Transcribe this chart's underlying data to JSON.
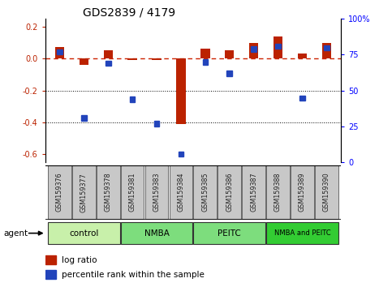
{
  "title": "GDS2839 / 4179",
  "samples": [
    "GSM159376",
    "GSM159377",
    "GSM159378",
    "GSM159381",
    "GSM159383",
    "GSM159384",
    "GSM159385",
    "GSM159386",
    "GSM159387",
    "GSM159388",
    "GSM159389",
    "GSM159390"
  ],
  "log_ratio": [
    0.07,
    -0.04,
    0.05,
    -0.01,
    -0.01,
    -0.41,
    0.06,
    0.05,
    0.1,
    0.14,
    0.03,
    0.1
  ],
  "percentile_rank": [
    76,
    30,
    68,
    43,
    26,
    5,
    69,
    61,
    78,
    80,
    44,
    79
  ],
  "groups": [
    {
      "label": "control",
      "start": 0,
      "end": 3,
      "color": "#c8f0aa"
    },
    {
      "label": "NMBA",
      "start": 3,
      "end": 6,
      "color": "#7ddd7d"
    },
    {
      "label": "PEITC",
      "start": 6,
      "end": 9,
      "color": "#7ddd7d"
    },
    {
      "label": "NMBA and PEITC",
      "start": 9,
      "end": 12,
      "color": "#33cc33"
    }
  ],
  "ylim_left": [
    -0.65,
    0.25
  ],
  "ylim_right": [
    0,
    100
  ],
  "yticks_left": [
    0.2,
    0.0,
    -0.2,
    -0.4,
    -0.6
  ],
  "yticks_right": [
    100,
    75,
    50,
    25,
    0
  ],
  "ytick_labels_right": [
    "100%",
    "75",
    "50",
    "25",
    "0"
  ],
  "red_color": "#bb2200",
  "blue_color": "#2244bb",
  "dashed_line_color": "#cc2200",
  "dotted_line_color": "#000000",
  "sample_box_color": "#c8c8c8",
  "agent_label": "agent",
  "legend_items": [
    "log ratio",
    "percentile rank within the sample"
  ]
}
